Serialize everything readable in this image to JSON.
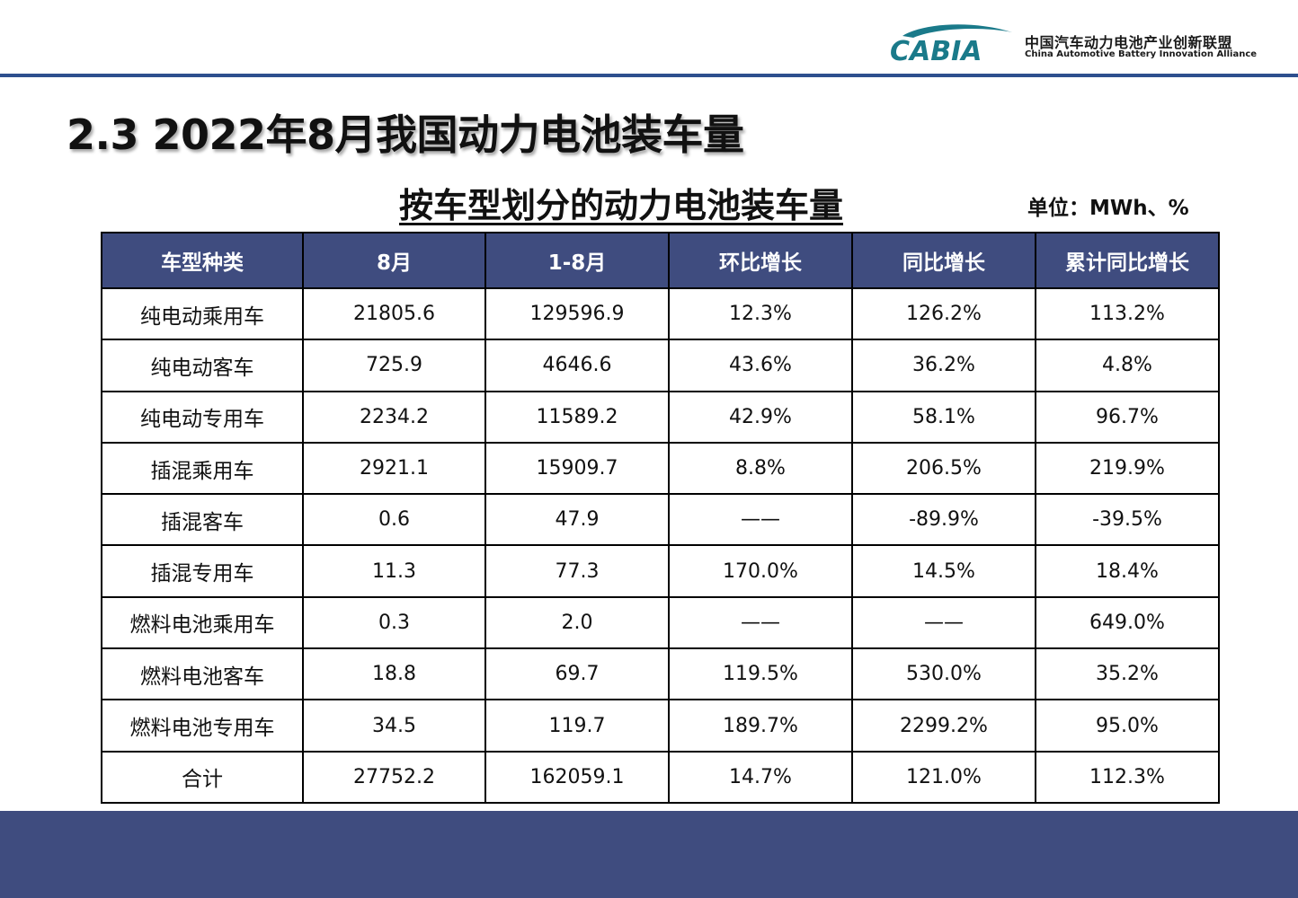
{
  "logo": {
    "mark": "CABIA",
    "name_cn": "中国汽车动力电池产业创新联盟",
    "name_en": "China Automotive Battery Innovation Alliance",
    "color": "#1a7a8a"
  },
  "page_title": "2.3 2022年8月我国动力电池装车量",
  "table_title": "按车型划分的动力电池装车量",
  "unit": "单位：MWh、%",
  "table": {
    "headers": [
      "车型种类",
      "8月",
      "1-8月",
      "环比增长",
      "同比增长",
      "累计同比增长"
    ],
    "rows": [
      [
        "纯电动乘用车",
        "21805.6",
        "129596.9",
        "12.3%",
        "126.2%",
        "113.2%"
      ],
      [
        "纯电动客车",
        "725.9",
        "4646.6",
        "43.6%",
        "36.2%",
        "4.8%"
      ],
      [
        "纯电动专用车",
        "2234.2",
        "11589.2",
        "42.9%",
        "58.1%",
        "96.7%"
      ],
      [
        "插混乘用车",
        "2921.1",
        "15909.7",
        "8.8%",
        "206.5%",
        "219.9%"
      ],
      [
        "插混客车",
        "0.6",
        "47.9",
        "——",
        "-89.9%",
        "-39.5%"
      ],
      [
        "插混专用车",
        "11.3",
        "77.3",
        "170.0%",
        "14.5%",
        "18.4%"
      ],
      [
        "燃料电池乘用车",
        "0.3",
        "2.0",
        "——",
        "——",
        "649.0%"
      ],
      [
        "燃料电池客车",
        "18.8",
        "69.7",
        "119.5%",
        "530.0%",
        "35.2%"
      ],
      [
        "燃料电池专用车",
        "34.5",
        "119.7",
        "189.7%",
        "2299.2%",
        "95.0%"
      ],
      [
        "合计",
        "27752.2",
        "162059.1",
        "14.7%",
        "121.0%",
        "112.3%"
      ]
    ]
  },
  "colors": {
    "header_bg": "#3f4c7f",
    "accent_line": "#2d4f8e"
  }
}
